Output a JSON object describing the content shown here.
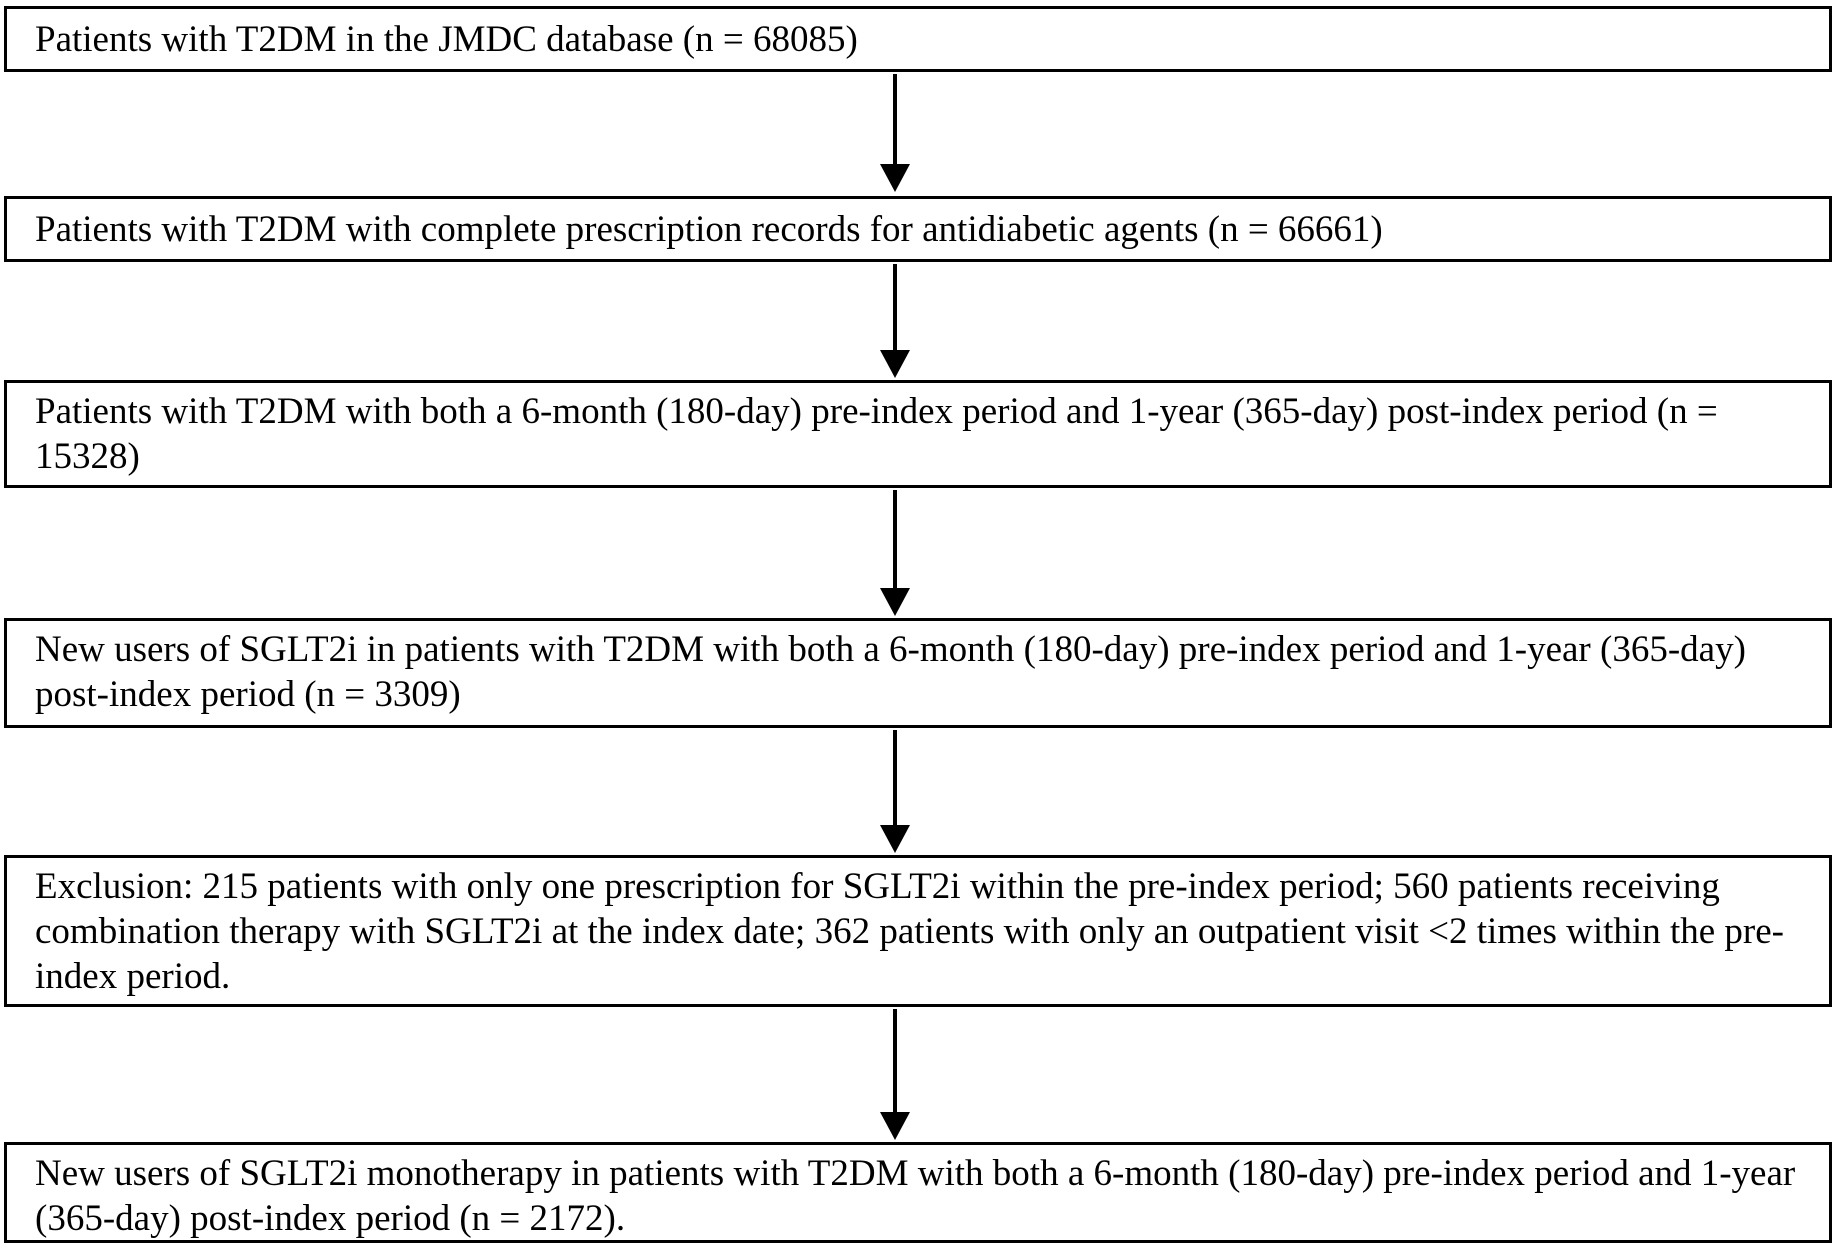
{
  "flowchart": {
    "type": "patient-selection-flow-diagram",
    "boxes": [
      {
        "id": "jmdc-population",
        "text": "Patients with T2DM in the JMDC database (n = 68085)",
        "n": 68085
      },
      {
        "id": "complete-prescription-records",
        "text": "Patients with T2DM with complete prescription records for antidiabetic agents (n = 66661)",
        "n": 66661
      },
      {
        "id": "pre-and-post-index-periods",
        "text": "Patients with T2DM with both a 6-month (180-day) pre-index period and 1-year (365-day) post-index period (n = 15328)",
        "n": 15328
      },
      {
        "id": "sglt2i-new-users",
        "text": "New users of SGLT2i in patients with T2DM with both a 6-month (180-day) pre-index period and 1-year (365-day) post-index period (n = 3309)",
        "n": 3309
      },
      {
        "id": "exclusion",
        "text": "Exclusion: 215 patients with only one prescription for SGLT2i within the pre-index period; 560 patients receiving combination therapy with SGLT2i at the index date; 362 patients with only an outpatient visit <2 times within the pre-index period.",
        "excluded_counts": {
          "only_one_prescription": 215,
          "combination_therapy_at_index": 560,
          "outpatient_visit_lt_2": 362
        }
      },
      {
        "id": "final-cohort-monotherapy",
        "text": "New users of SGLT2i monotherapy in patients with T2DM with both a 6-month (180-day) pre-index period and 1-year (365-day) post-index period (n = 2172).",
        "n": 2172
      }
    ],
    "arrows": 5,
    "colors": {
      "border": "#000000",
      "text": "#000000",
      "arrow": "#000000",
      "background": "#ffffff"
    }
  }
}
